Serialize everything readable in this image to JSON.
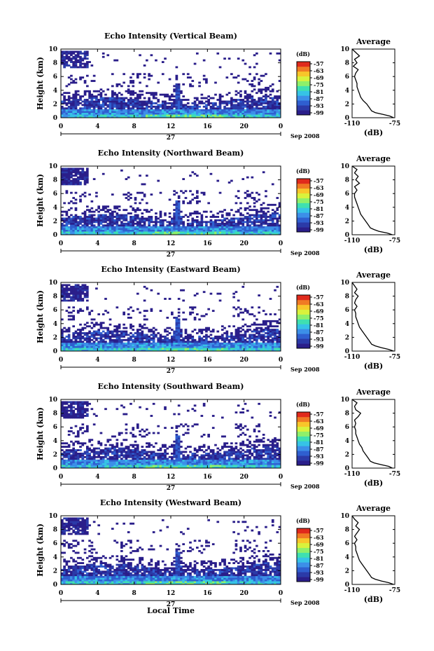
{
  "chart_data": [
    {
      "type": "heatmap",
      "title": "Echo Intensity (Vertical Beam)",
      "ylabel": "Height (km)",
      "xlim": [
        0,
        24
      ],
      "ylim": [
        0,
        10
      ],
      "x_ticks": [
        "0",
        "4",
        "8",
        "12",
        "16",
        "20",
        "0"
      ],
      "y_ticks": [
        "0",
        "2",
        "4",
        "6",
        "8",
        "10"
      ],
      "day_label": "27",
      "month_label": "Sep 2008",
      "colorbar": {
        "unit": "(dB)",
        "ticks": [
          "-57",
          "-63",
          "-69",
          "-75",
          "-81",
          "-87",
          "-93",
          "-99"
        ]
      },
      "average_profile": {
        "title": "Average",
        "xlabel": "(dB)",
        "x_ticks": [
          "-110",
          "-75"
        ],
        "y_ticks": [
          "0",
          "2",
          "4",
          "6",
          "8",
          "10"
        ],
        "height": [
          0,
          0.25,
          0.5,
          0.75,
          1,
          1.5,
          2,
          2.5,
          3,
          3.5,
          4,
          4.5,
          5,
          5.5,
          6,
          6.5,
          7,
          7.5,
          8,
          8.5,
          9,
          9.5,
          10
        ],
        "db": [
          -76,
          -79,
          -85,
          -91,
          -94,
          -96,
          -98,
          -101,
          -103,
          -104,
          -105,
          -106,
          -106,
          -107,
          -108,
          -107,
          -105,
          -109,
          -106,
          -108,
          -104,
          -107,
          -110
        ]
      }
    },
    {
      "type": "heatmap",
      "title": "Echo Intensity (Northward Beam)",
      "ylabel": "Height (km)",
      "xlim": [
        0,
        24
      ],
      "ylim": [
        0,
        10
      ],
      "x_ticks": [
        "0",
        "4",
        "8",
        "12",
        "16",
        "20",
        "0"
      ],
      "y_ticks": [
        "0",
        "2",
        "4",
        "6",
        "8",
        "10"
      ],
      "day_label": "27",
      "month_label": "Sep 2008",
      "colorbar": {
        "unit": "(dB)",
        "ticks": [
          "-57",
          "-63",
          "-69",
          "-75",
          "-81",
          "-87",
          "-93",
          "-99"
        ]
      },
      "average_profile": {
        "title": "Average",
        "xlabel": "(dB)",
        "x_ticks": [
          "-110",
          "-75"
        ],
        "y_ticks": [
          "0",
          "2",
          "4",
          "6",
          "8",
          "10"
        ],
        "height": [
          0,
          0.25,
          0.5,
          0.75,
          1,
          1.5,
          2,
          2.5,
          3,
          3.5,
          4,
          4.5,
          5,
          5.5,
          6,
          6.5,
          7,
          7.5,
          8,
          8.5,
          9,
          9.5,
          10
        ],
        "db": [
          -77,
          -81,
          -88,
          -92,
          -95,
          -97,
          -99,
          -101,
          -103,
          -104,
          -105,
          -106,
          -107,
          -108,
          -108,
          -106,
          -108,
          -104,
          -107,
          -105,
          -108,
          -106,
          -110
        ]
      }
    },
    {
      "type": "heatmap",
      "title": "Echo Intensity (Eastward Beam)",
      "ylabel": "Height (km)",
      "xlim": [
        0,
        24
      ],
      "ylim": [
        0,
        10
      ],
      "x_ticks": [
        "0",
        "4",
        "8",
        "12",
        "16",
        "20",
        "0"
      ],
      "y_ticks": [
        "0",
        "2",
        "4",
        "6",
        "8",
        "10"
      ],
      "day_label": "27",
      "month_label": "Sep 2008",
      "colorbar": {
        "unit": "(dB)",
        "ticks": [
          "-57",
          "-63",
          "-69",
          "-75",
          "-81",
          "-87",
          "-93",
          "-99"
        ]
      },
      "average_profile": {
        "title": "Average",
        "xlabel": "(dB)",
        "x_ticks": [
          "-110",
          "-75"
        ],
        "y_ticks": [
          "0",
          "2",
          "4",
          "6",
          "8",
          "10"
        ],
        "height": [
          0,
          0.25,
          0.5,
          0.75,
          1,
          1.5,
          2,
          2.5,
          3,
          3.5,
          4,
          4.5,
          5,
          5.5,
          6,
          6.5,
          7,
          7.5,
          8,
          8.5,
          9,
          9.5,
          10
        ],
        "db": [
          -76,
          -80,
          -86,
          -91,
          -94,
          -96,
          -98,
          -100,
          -102,
          -104,
          -105,
          -106,
          -107,
          -107,
          -108,
          -106,
          -108,
          -107,
          -105,
          -108,
          -106,
          -108,
          -110
        ]
      }
    },
    {
      "type": "heatmap",
      "title": "Echo Intensity (Southward Beam)",
      "ylabel": "Height (km)",
      "xlim": [
        0,
        24
      ],
      "ylim": [
        0,
        10
      ],
      "x_ticks": [
        "0",
        "4",
        "8",
        "12",
        "16",
        "20",
        "0"
      ],
      "y_ticks": [
        "0",
        "2",
        "4",
        "6",
        "8",
        "10"
      ],
      "day_label": "27",
      "month_label": "Sep 2008",
      "colorbar": {
        "unit": "(dB)",
        "ticks": [
          "-57",
          "-63",
          "-69",
          "-75",
          "-81",
          "-87",
          "-93",
          "-99"
        ]
      },
      "average_profile": {
        "title": "Average",
        "xlabel": "(dB)",
        "x_ticks": [
          "-110",
          "-75"
        ],
        "y_ticks": [
          "0",
          "2",
          "4",
          "6",
          "8",
          "10"
        ],
        "height": [
          0,
          0.25,
          0.5,
          0.75,
          1,
          1.5,
          2,
          2.5,
          3,
          3.5,
          4,
          4.5,
          5,
          5.5,
          6,
          6.5,
          7,
          7.5,
          8,
          8.5,
          9,
          9.5,
          10
        ],
        "db": [
          -77,
          -80,
          -86,
          -92,
          -95,
          -97,
          -99,
          -101,
          -102,
          -104,
          -105,
          -106,
          -107,
          -107,
          -108,
          -107,
          -108,
          -105,
          -103,
          -107,
          -108,
          -106,
          -110
        ]
      }
    },
    {
      "type": "heatmap",
      "title": "Echo Intensity (Westward Beam)",
      "ylabel": "Height (km)",
      "xlabel": "Local Time",
      "xlim": [
        0,
        24
      ],
      "ylim": [
        0,
        10
      ],
      "x_ticks": [
        "0",
        "4",
        "8",
        "12",
        "16",
        "20",
        "0"
      ],
      "y_ticks": [
        "0",
        "2",
        "4",
        "6",
        "8",
        "10"
      ],
      "day_label": "27",
      "month_label": "Sep 2008",
      "colorbar": {
        "unit": "(dB)",
        "ticks": [
          "-57",
          "-63",
          "-69",
          "-75",
          "-81",
          "-87",
          "-93",
          "-99"
        ]
      },
      "average_profile": {
        "title": "Average",
        "xlabel": "(dB)",
        "x_ticks": [
          "-110",
          "-75"
        ],
        "y_ticks": [
          "0",
          "2",
          "4",
          "6",
          "8",
          "10"
        ],
        "height": [
          0,
          0.25,
          0.5,
          0.75,
          1,
          1.5,
          2,
          2.5,
          3,
          3.5,
          4,
          4.5,
          5,
          5.5,
          6,
          6.5,
          7,
          7.5,
          8,
          8.5,
          9,
          9.5,
          10
        ],
        "db": [
          -76,
          -80,
          -86,
          -91,
          -94,
          -96,
          -98,
          -100,
          -102,
          -104,
          -105,
          -106,
          -107,
          -107,
          -108,
          -106,
          -108,
          -106,
          -104,
          -107,
          -105,
          -108,
          -110
        ]
      }
    }
  ],
  "colorscale": [
    "#ffffff",
    "#2a1e8a",
    "#2b3aa8",
    "#2f5fd0",
    "#3c8fe8",
    "#36c3e6",
    "#3fe0b0",
    "#8ef06a",
    "#d9f23c",
    "#f8c62a",
    "#f07a24",
    "#e02a1c"
  ]
}
